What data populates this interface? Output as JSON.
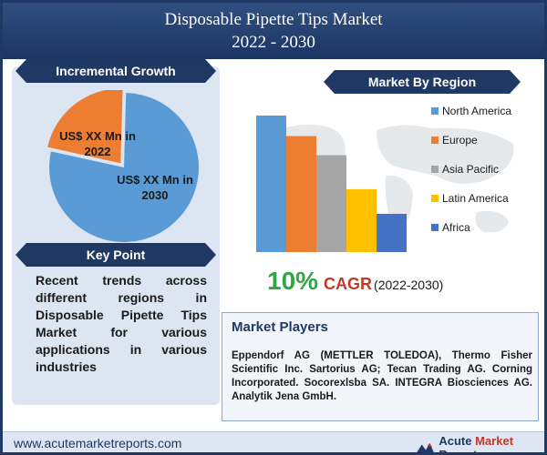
{
  "header": {
    "title_line1": "Disposable Pipette Tips Market",
    "title_line2": "2022 - 2030"
  },
  "left": {
    "incremental_growth_label": "Incremental Growth",
    "key_point_label": "Key Point",
    "key_point_text": "Recent trends across different regions in Disposable Pipette Tips Market for various applications in various industries"
  },
  "right": {
    "market_by_region_label": "Market By Region",
    "cagr_value": "10%",
    "cagr_label": "CAGR",
    "cagr_period": "(2022-2030)"
  },
  "players": {
    "title": "Market Players",
    "text": "Eppendorf AG (METTLER TOLEDOA), Thermo Fisher Scientific Inc. Sartorius AG; Tecan Trading AG. Corning Incorporated. Socorexlsba SA. INTEGRA Biosciences AG. Analytik Jena GmbH."
  },
  "footer": {
    "url": "www.acutemarketreports.com",
    "logo_word1": "Acute",
    "logo_word2": "Market",
    "logo_word3": "Reports"
  },
  "colors": {
    "north_america": "#5b9bd5",
    "europe": "#ed7d31",
    "asia_pacific": "#a5a5a5",
    "latin_america": "#ffc000",
    "africa": "#4472c4"
  },
  "chart_data": [
    {
      "type": "pie",
      "slices": [
        {
          "label_line1": "US$ XX Mn in",
          "label_line2": "2022",
          "value": 22,
          "color": "#ed7d31"
        },
        {
          "label_line1": "US$ XX Mn in",
          "label_line2": "2030",
          "value": 78,
          "color": "#5b9bd5"
        }
      ]
    },
    {
      "type": "bar",
      "categories": [
        "North America",
        "Europe",
        "Asia Pacific",
        "Latin America",
        "Africa"
      ],
      "values": [
        100,
        85,
        71,
        46,
        28
      ],
      "colors": [
        "#5b9bd5",
        "#ed7d31",
        "#a5a5a5",
        "#ffc000",
        "#4472c4"
      ],
      "ylim": [
        0,
        100
      ],
      "legend": "right"
    }
  ]
}
